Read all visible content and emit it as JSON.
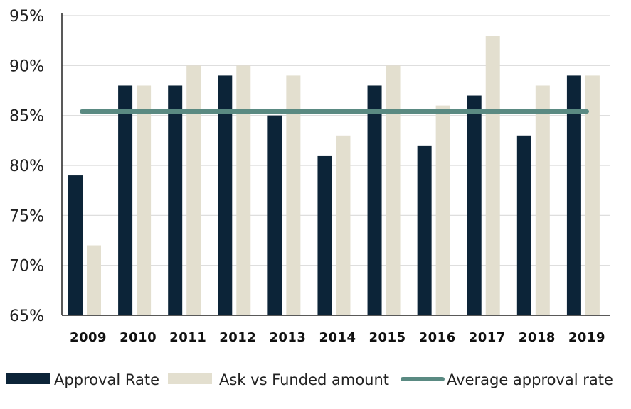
{
  "chart_data": {
    "type": "bar",
    "categories": [
      "2009",
      "2010",
      "2011",
      "2012",
      "2013",
      "2014",
      "2015",
      "2016",
      "2017",
      "2018",
      "2019"
    ],
    "series": [
      {
        "name": "Approval Rate",
        "kind": "bar",
        "color": "#0c2438",
        "values": [
          79,
          88,
          88,
          89,
          85,
          81,
          88,
          82,
          87,
          83,
          89
        ]
      },
      {
        "name": "Ask vs Funded amount",
        "kind": "bar",
        "color": "#e3dfcf",
        "values": [
          72,
          88,
          90,
          90,
          89,
          83,
          90,
          86,
          93,
          88,
          89
        ]
      },
      {
        "name": "Average approval rate",
        "kind": "line",
        "color": "#5a8a82",
        "values": [
          85.4,
          85.4,
          85.4,
          85.4,
          85.4,
          85.4,
          85.4,
          85.4,
          85.4,
          85.4,
          85.4
        ]
      }
    ],
    "ylim": [
      65,
      95
    ],
    "yticks": [
      "65%",
      "70%",
      "75%",
      "80%",
      "85%",
      "90%",
      "95%"
    ],
    "ytick_values": [
      65,
      70,
      75,
      80,
      85,
      90,
      95
    ],
    "grid": true,
    "legend_position": "bottom"
  }
}
